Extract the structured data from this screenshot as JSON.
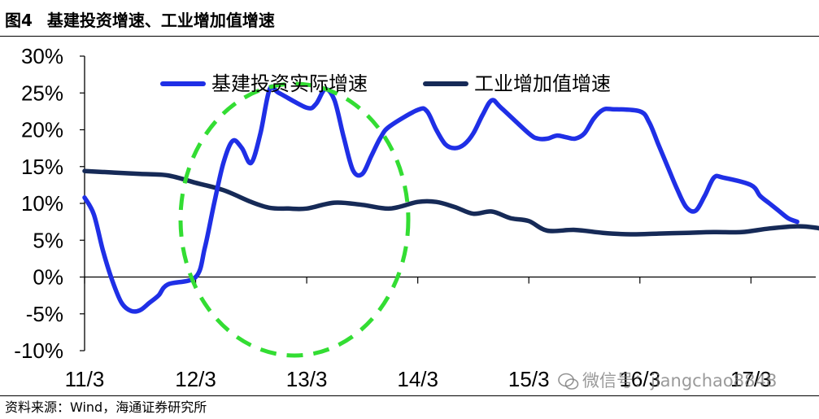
{
  "figure": {
    "number": "图4",
    "title": "基建投资增速、工业增加值增速",
    "source": "资料来源：Wind，海通证券研究所",
    "watermark": "微信号：jiangchao8848"
  },
  "chart_data": {
    "type": "line",
    "title": "基建投资增速、工业增加值增速",
    "xlabel": "",
    "ylabel": "",
    "ylim": [
      -10,
      30
    ],
    "y_ticks": [
      "30%",
      "25%",
      "20%",
      "15%",
      "10%",
      "5%",
      "0%",
      "-5%",
      "-10%"
    ],
    "x_ticks": [
      "11/3",
      "12/3",
      "13/3",
      "14/3",
      "15/3",
      "16/3",
      "17/3"
    ],
    "x_range": [
      "2011-03",
      "2017-10"
    ],
    "grid": false,
    "legend_position": "top-center",
    "colors": {
      "infrastructure": "#1f2fe6",
      "industrial": "#162a57",
      "highlight": "#33dd33"
    },
    "annotation": "green dashed ellipse highlighting 2012-2013",
    "series": [
      {
        "name": "基建投资实际增速",
        "color": "#1f2fe6",
        "points": [
          [
            "2011-03",
            10.8
          ],
          [
            "2011-04",
            8.5
          ],
          [
            "2011-05",
            3.5
          ],
          [
            "2011-06",
            -0.5
          ],
          [
            "2011-07",
            -3.5
          ],
          [
            "2011-08",
            -4.6
          ],
          [
            "2011-09",
            -4.5
          ],
          [
            "2011-10",
            -3.5
          ],
          [
            "2011-11",
            -2.5
          ],
          [
            "2011-12",
            -1.0
          ],
          [
            "2012-03",
            0.0
          ],
          [
            "2012-04",
            4.0
          ],
          [
            "2012-05",
            10.0
          ],
          [
            "2012-06",
            15.5
          ],
          [
            "2012-07",
            18.5
          ],
          [
            "2012-08",
            17.5
          ],
          [
            "2012-09",
            15.5
          ],
          [
            "2012-10",
            19.5
          ],
          [
            "2012-11",
            25.5
          ],
          [
            "2012-12",
            25.0
          ],
          [
            "2013-03",
            23.0
          ],
          [
            "2013-04",
            23.5
          ],
          [
            "2013-05",
            25.5
          ],
          [
            "2013-06",
            24.0
          ],
          [
            "2013-07",
            19.0
          ],
          [
            "2013-08",
            14.5
          ],
          [
            "2013-09",
            14.0
          ],
          [
            "2013-10",
            16.5
          ],
          [
            "2013-11",
            19.0
          ],
          [
            "2013-12",
            20.5
          ],
          [
            "2014-03",
            22.7
          ],
          [
            "2014-04",
            22.5
          ],
          [
            "2014-05",
            20.0
          ],
          [
            "2014-06",
            18.0
          ],
          [
            "2014-07",
            17.5
          ],
          [
            "2014-08",
            18.0
          ],
          [
            "2014-09",
            19.5
          ],
          [
            "2014-10",
            22.0
          ],
          [
            "2014-11",
            24.0
          ],
          [
            "2014-12",
            23.0
          ],
          [
            "2015-03",
            19.5
          ],
          [
            "2015-04",
            18.8
          ],
          [
            "2015-05",
            18.8
          ],
          [
            "2015-06",
            19.2
          ],
          [
            "2015-07",
            19.0
          ],
          [
            "2015-08",
            18.8
          ],
          [
            "2015-09",
            19.5
          ],
          [
            "2015-10",
            21.5
          ],
          [
            "2015-11",
            22.7
          ],
          [
            "2015-12",
            22.8
          ],
          [
            "2016-03",
            22.5
          ],
          [
            "2016-04",
            21.0
          ],
          [
            "2016-05",
            18.0
          ],
          [
            "2016-06",
            15.0
          ],
          [
            "2016-07",
            12.0
          ],
          [
            "2016-08",
            9.5
          ],
          [
            "2016-09",
            9.0
          ],
          [
            "2016-10",
            11.0
          ],
          [
            "2016-11",
            13.5
          ],
          [
            "2016-12",
            13.5
          ],
          [
            "2017-03",
            12.5
          ],
          [
            "2017-04",
            11.0
          ],
          [
            "2017-05",
            10.0
          ],
          [
            "2017-06",
            9.0
          ],
          [
            "2017-07",
            8.0
          ],
          [
            "2017-08",
            7.5
          ]
        ]
      },
      {
        "name": "工业增加值增速",
        "color": "#162a57",
        "points": [
          [
            "2011-03",
            14.4
          ],
          [
            "2011-06",
            14.2
          ],
          [
            "2011-09",
            14.0
          ],
          [
            "2011-12",
            13.8
          ],
          [
            "2012-03",
            12.8
          ],
          [
            "2012-06",
            11.8
          ],
          [
            "2012-09",
            10.2
          ],
          [
            "2012-11",
            9.4
          ],
          [
            "2013-01",
            9.3
          ],
          [
            "2013-03",
            9.3
          ],
          [
            "2013-06",
            10.1
          ],
          [
            "2013-09",
            9.8
          ],
          [
            "2013-12",
            9.3
          ],
          [
            "2014-03",
            10.2
          ],
          [
            "2014-05",
            10.2
          ],
          [
            "2014-07",
            9.5
          ],
          [
            "2014-09",
            8.6
          ],
          [
            "2014-11",
            8.9
          ],
          [
            "2015-01",
            8.0
          ],
          [
            "2015-03",
            7.6
          ],
          [
            "2015-05",
            6.3
          ],
          [
            "2015-08",
            6.4
          ],
          [
            "2015-11",
            6.0
          ],
          [
            "2016-02",
            5.8
          ],
          [
            "2016-05",
            5.9
          ],
          [
            "2016-08",
            6.0
          ],
          [
            "2016-11",
            6.1
          ],
          [
            "2017-02",
            6.1
          ],
          [
            "2017-05",
            6.6
          ],
          [
            "2017-08",
            6.9
          ],
          [
            "2017-10",
            6.7
          ],
          [
            "2017-12",
            6.2
          ]
        ]
      }
    ]
  }
}
